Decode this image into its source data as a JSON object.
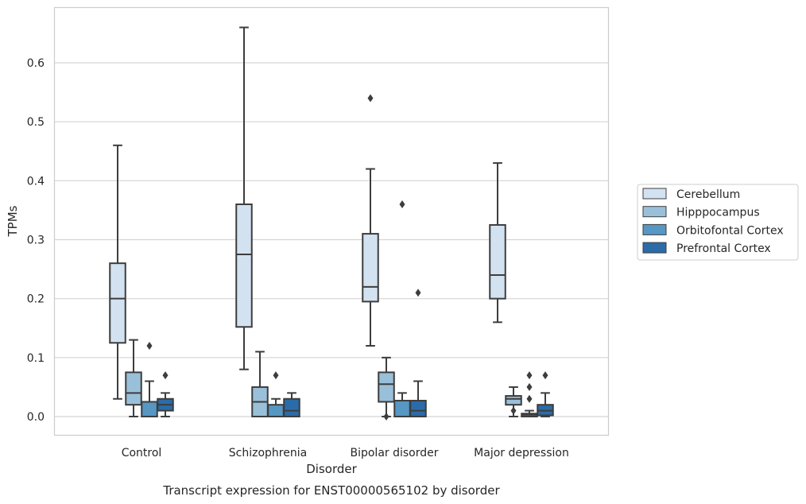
{
  "chart_data": {
    "type": "box",
    "title": "Transcript expression for ENST00000565102 by disorder",
    "xlabel": "Disorder",
    "ylabel": "TPMs",
    "ylim": [
      -0.033,
      0.695
    ],
    "yticks": [
      "0.0",
      "0.1",
      "0.2",
      "0.3",
      "0.4",
      "0.5",
      "0.6"
    ],
    "ytick_values": [
      0.0,
      0.1,
      0.2,
      0.3,
      0.4,
      0.5,
      0.6
    ],
    "grid": "horizontal",
    "legend_position": "right",
    "categories": [
      "Control",
      "Schizophrenia",
      "Bipolar disorder",
      "Major depression"
    ],
    "series": [
      {
        "name": "Cerebellum",
        "color": "#d3e2f1",
        "boxes": [
          {
            "whislo": 0.03,
            "q1": 0.125,
            "med": 0.2,
            "q3": 0.26,
            "whishi": 0.46,
            "fliers": []
          },
          {
            "whislo": 0.08,
            "q1": 0.152,
            "med": 0.275,
            "q3": 0.36,
            "whishi": 0.66,
            "fliers": []
          },
          {
            "whislo": 0.12,
            "q1": 0.195,
            "med": 0.22,
            "q3": 0.31,
            "whishi": 0.42,
            "fliers": [
              0.54
            ]
          },
          {
            "whislo": 0.16,
            "q1": 0.2,
            "med": 0.24,
            "q3": 0.325,
            "whishi": 0.43,
            "fliers": []
          }
        ]
      },
      {
        "name": "Hipppocampus",
        "color": "#9ac0d9",
        "boxes": [
          {
            "whislo": 0.0,
            "q1": 0.02,
            "med": 0.04,
            "q3": 0.075,
            "whishi": 0.13,
            "fliers": []
          },
          {
            "whislo": 0.0,
            "q1": 0.0,
            "med": 0.025,
            "q3": 0.05,
            "whishi": 0.11,
            "fliers": []
          },
          {
            "whislo": 0.0,
            "q1": 0.025,
            "med": 0.055,
            "q3": 0.075,
            "whishi": 0.1,
            "fliers": [
              0.0
            ]
          },
          {
            "whislo": 0.0,
            "q1": 0.02,
            "med": 0.03,
            "q3": 0.035,
            "whishi": 0.05,
            "fliers": [
              0.01
            ]
          }
        ]
      },
      {
        "name": "Orbitofontal Cortex",
        "color": "#5697c4",
        "boxes": [
          {
            "whislo": 0.0,
            "q1": 0.0,
            "med": 0.0,
            "q3": 0.025,
            "whishi": 0.06,
            "fliers": [
              0.12
            ]
          },
          {
            "whislo": 0.0,
            "q1": 0.0,
            "med": 0.0,
            "q3": 0.02,
            "whishi": 0.03,
            "fliers": [
              0.07
            ]
          },
          {
            "whislo": 0.0,
            "q1": 0.0,
            "med": 0.0,
            "q3": 0.027,
            "whishi": 0.04,
            "fliers": [
              0.36
            ]
          },
          {
            "whislo": 0.0,
            "q1": 0.0,
            "med": 0.003,
            "q3": 0.005,
            "whishi": 0.01,
            "fliers": [
              0.07
            ]
          }
        ]
      },
      {
        "name": "Prefrontal Cortex",
        "color": "#2b6ba8",
        "boxes": [
          {
            "whislo": 0.0,
            "q1": 0.01,
            "med": 0.02,
            "q3": 0.03,
            "whishi": 0.04,
            "fliers": [
              0.07
            ]
          },
          {
            "whislo": 0.0,
            "q1": 0.0,
            "med": 0.01,
            "q3": 0.03,
            "whishi": 0.04,
            "fliers": []
          },
          {
            "whislo": 0.0,
            "q1": 0.0,
            "med": 0.01,
            "q3": 0.027,
            "whishi": 0.06,
            "fliers": [
              0.21
            ]
          },
          {
            "whislo": 0.0,
            "q1": 0.002,
            "med": 0.01,
            "q3": 0.02,
            "whishi": 0.04,
            "fliers": [
              0.07
            ]
          }
        ]
      }
    ],
    "extra_fliers": [
      {
        "category": 3,
        "series": 2,
        "values": [
          0.03,
          0.05
        ]
      }
    ]
  }
}
